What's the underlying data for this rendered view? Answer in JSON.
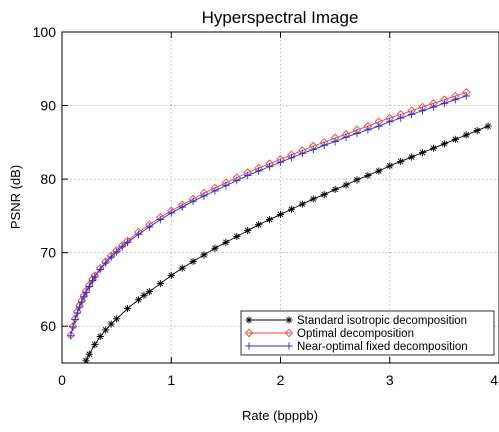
{
  "chart_data": {
    "type": "line",
    "title": "Hyperspectral Image",
    "xlabel": "Rate (bpppb)",
    "ylabel": "PSNR (dB)",
    "xlim": [
      0,
      4
    ],
    "ylim": [
      55,
      100
    ],
    "xticks": [
      0,
      1,
      2,
      3,
      4
    ],
    "yticks": [
      60,
      70,
      80,
      90,
      100
    ],
    "grid": true,
    "legend_position": "bottom-right",
    "series": [
      {
        "name": "Standard isotropic decomposition",
        "color": "#000000",
        "marker": "asterisk",
        "x": [
          0.22,
          0.25,
          0.3,
          0.35,
          0.4,
          0.45,
          0.5,
          0.6,
          0.7,
          0.75,
          0.8,
          0.9,
          1.0,
          1.1,
          1.2,
          1.3,
          1.4,
          1.5,
          1.6,
          1.7,
          1.8,
          1.9,
          2.0,
          2.1,
          2.2,
          2.3,
          2.4,
          2.5,
          2.6,
          2.7,
          2.8,
          2.9,
          3.0,
          3.1,
          3.2,
          3.3,
          3.4,
          3.5,
          3.6,
          3.7,
          3.8,
          3.9
        ],
        "values": [
          55.3,
          56.2,
          57.5,
          58.6,
          59.5,
          60.3,
          61.0,
          62.4,
          63.6,
          64.2,
          64.7,
          65.8,
          66.9,
          67.9,
          68.8,
          69.7,
          70.6,
          71.4,
          72.2,
          73.0,
          73.8,
          74.5,
          75.2,
          75.9,
          76.6,
          77.3,
          77.9,
          78.6,
          79.2,
          79.9,
          80.5,
          81.1,
          81.8,
          82.4,
          83.0,
          83.6,
          84.2,
          84.8,
          85.4,
          86.0,
          86.6,
          87.2
        ]
      },
      {
        "name": "Optimal decomposition",
        "color": "#e8443a",
        "marker": "diamond",
        "x": [
          0.08,
          0.1,
          0.12,
          0.14,
          0.16,
          0.18,
          0.2,
          0.22,
          0.25,
          0.28,
          0.3,
          0.35,
          0.4,
          0.45,
          0.5,
          0.55,
          0.6,
          0.7,
          0.8,
          0.9,
          1.0,
          1.1,
          1.2,
          1.3,
          1.4,
          1.5,
          1.6,
          1.7,
          1.8,
          1.9,
          2.0,
          2.1,
          2.2,
          2.3,
          2.4,
          2.5,
          2.6,
          2.7,
          2.8,
          2.9,
          3.0,
          3.1,
          3.2,
          3.3,
          3.4,
          3.5,
          3.6,
          3.7
        ],
        "values": [
          58.8,
          60.0,
          61.0,
          62.0,
          62.8,
          63.5,
          64.2,
          64.8,
          65.6,
          66.4,
          66.9,
          67.9,
          68.8,
          69.6,
          70.3,
          71.0,
          71.6,
          72.8,
          73.8,
          74.8,
          75.7,
          76.5,
          77.3,
          78.1,
          78.8,
          79.5,
          80.2,
          80.9,
          81.5,
          82.1,
          82.7,
          83.3,
          83.9,
          84.5,
          85.0,
          85.6,
          86.1,
          86.7,
          87.2,
          87.8,
          88.3,
          88.8,
          89.3,
          89.8,
          90.3,
          90.8,
          91.3,
          91.8
        ]
      },
      {
        "name": "Near-optimal fixed decomposition",
        "color": "#2b2bd9",
        "marker": "plus",
        "x": [
          0.08,
          0.1,
          0.12,
          0.14,
          0.16,
          0.18,
          0.2,
          0.22,
          0.25,
          0.28,
          0.3,
          0.35,
          0.4,
          0.45,
          0.5,
          0.55,
          0.6,
          0.7,
          0.8,
          0.9,
          1.0,
          1.1,
          1.2,
          1.3,
          1.4,
          1.5,
          1.6,
          1.7,
          1.8,
          1.9,
          2.0,
          2.1,
          2.2,
          2.3,
          2.4,
          2.5,
          2.6,
          2.7,
          2.8,
          2.9,
          3.0,
          3.1,
          3.2,
          3.3,
          3.4,
          3.5,
          3.6,
          3.7
        ],
        "values": [
          58.7,
          59.9,
          60.9,
          61.8,
          62.6,
          63.3,
          64.0,
          64.6,
          65.4,
          66.2,
          66.7,
          67.7,
          68.6,
          69.4,
          70.1,
          70.8,
          71.4,
          72.5,
          73.5,
          74.5,
          75.4,
          76.2,
          77.0,
          77.7,
          78.4,
          79.1,
          79.8,
          80.5,
          81.1,
          81.7,
          82.3,
          82.9,
          83.5,
          84.0,
          84.6,
          85.1,
          85.7,
          86.2,
          86.7,
          87.2,
          87.8,
          88.3,
          88.8,
          89.3,
          89.8,
          90.3,
          90.8,
          91.3
        ]
      }
    ]
  }
}
